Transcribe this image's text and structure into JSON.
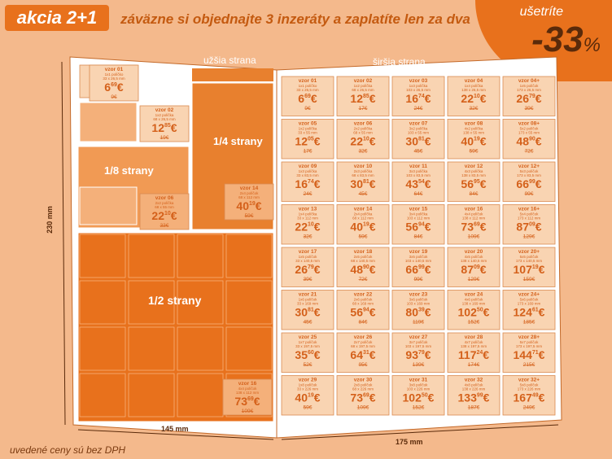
{
  "header": {
    "badge": "akcia 2+1",
    "headline": "záväzne si objednajte 3 inzeráty a zaplatíte len za dva",
    "save_label": "ušetríte",
    "save_value": "-33",
    "save_unit": "%"
  },
  "labels": {
    "narrow": "užšia strana",
    "wide": "širšia strana",
    "height": "230 mm",
    "narrow_width": "145 mm",
    "wide_width": "175 mm",
    "quarter": "1/4 strany",
    "eighth": "1/8 strany",
    "half": "1/2 strany"
  },
  "narrow_ads": [
    {
      "name": "vzor 01",
      "pol": "1x1 políčko",
      "size": "33 x 26,5 mm",
      "price": "6",
      "cents": "69",
      "old": "9"
    },
    {
      "name": "vzor 02",
      "pol": "1x2 políčka",
      "size": "68 x 26,5 mm",
      "price": "12",
      "cents": "85",
      "old": "19"
    },
    {
      "name": "vzor 06",
      "pol": "2x2 políčka",
      "size": "68 x 55 mm",
      "price": "22",
      "cents": "10",
      "old": "33"
    },
    {
      "name": "vzor 14",
      "pol": "2x4 políčok",
      "size": "68 x 112 mm",
      "price": "40",
      "cents": "19",
      "old": "59"
    },
    {
      "name": "vzor 16",
      "pol": "4x4 políčok",
      "size": "138 x 112 mm",
      "price": "73",
      "cents": "69",
      "old": "109"
    }
  ],
  "wide_ads": [
    {
      "name": "vzor 01",
      "pol": "1x1 políčko",
      "size": "33 x 26,5 mm",
      "price": "6",
      "cents": "69",
      "old": "9"
    },
    {
      "name": "vzor 02",
      "pol": "1x2 políčka",
      "size": "68 x 26,5 mm",
      "price": "12",
      "cents": "85",
      "old": "17"
    },
    {
      "name": "vzor 03",
      "pol": "1x3 políčka",
      "size": "103 x 26,5 mm",
      "price": "16",
      "cents": "74",
      "old": "24"
    },
    {
      "name": "vzor 04",
      "pol": "1x4 políčka",
      "size": "138 x 26,5 mm",
      "price": "22",
      "cents": "10",
      "old": "32"
    },
    {
      "name": "vzor 04+",
      "pol": "1x5 políčok",
      "size": "173 x 26,5 mm",
      "price": "26",
      "cents": "79",
      "old": "39"
    },
    {
      "name": "vzor 05",
      "pol": "1x2 políčka",
      "size": "33 x 55 mm",
      "price": "12",
      "cents": "05",
      "old": "17"
    },
    {
      "name": "vzor 06",
      "pol": "2x2 políčka",
      "size": "68 x 55 mm",
      "price": "22",
      "cents": "10",
      "old": "32"
    },
    {
      "name": "vzor 07",
      "pol": "3x2 políčka",
      "size": "103 x 55 mm",
      "price": "30",
      "cents": "81",
      "old": "45"
    },
    {
      "name": "vzor 08",
      "pol": "4x2 políčka",
      "size": "138 x 55 mm",
      "price": "40",
      "cents": "19",
      "old": "59"
    },
    {
      "name": "vzor 08+",
      "pol": "5x2 políčok",
      "size": "173 x 55 mm",
      "price": "48",
      "cents": "90",
      "old": "72"
    },
    {
      "name": "vzor 09",
      "pol": "1x3 políčka",
      "size": "33 x 83,5 mm",
      "price": "16",
      "cents": "74",
      "old": "24"
    },
    {
      "name": "vzor 10",
      "pol": "2x3 políčka",
      "size": "68 x 83,5 mm",
      "price": "30",
      "cents": "81",
      "old": "45"
    },
    {
      "name": "vzor 11",
      "pol": "3x3 políčka",
      "size": "103 x 83,5 mm",
      "price": "43",
      "cents": "54",
      "old": "64"
    },
    {
      "name": "vzor 12",
      "pol": "4x3 políčka",
      "size": "138 x 83,5 mm",
      "price": "56",
      "cents": "95",
      "old": "84"
    },
    {
      "name": "vzor 12+",
      "pol": "5x3 políčok",
      "size": "173 x 83,5 mm",
      "price": "66",
      "cents": "99",
      "old": "99"
    },
    {
      "name": "vzor 13",
      "pol": "1x4 políčka",
      "size": "33 x 112 mm",
      "price": "22",
      "cents": "10",
      "old": "32"
    },
    {
      "name": "vzor 14",
      "pol": "2x4 políčka",
      "size": "68 x 112 mm",
      "price": "40",
      "cents": "19",
      "old": "59"
    },
    {
      "name": "vzor 15",
      "pol": "3x4 políčka",
      "size": "103 x 112 mm",
      "price": "56",
      "cents": "94",
      "old": "84"
    },
    {
      "name": "vzor 16",
      "pol": "4x4 políčok",
      "size": "138 x 112 mm",
      "price": "73",
      "cents": "69",
      "old": "109"
    },
    {
      "name": "vzor 16+",
      "pol": "5x4 políčok",
      "size": "173 x 112 mm",
      "price": "87",
      "cents": "09",
      "old": "129"
    },
    {
      "name": "vzor 17",
      "pol": "1x5 políčok",
      "size": "33 x 140,5 mm",
      "price": "26",
      "cents": "79",
      "old": "39"
    },
    {
      "name": "vzor 18",
      "pol": "2x5 políčok",
      "size": "68 x 140,5 mm",
      "price": "48",
      "cents": "90",
      "old": "72"
    },
    {
      "name": "vzor 19",
      "pol": "3x5 políčok",
      "size": "103 x 140,5 mm",
      "price": "66",
      "cents": "99",
      "old": "99"
    },
    {
      "name": "vzor 20",
      "pol": "4x5 políčok",
      "size": "138 x 140,5 mm",
      "price": "87",
      "cents": "09",
      "old": "129"
    },
    {
      "name": "vzor 20+",
      "pol": "5x5 políčok",
      "size": "173 x 140,5 mm",
      "price": "107",
      "cents": "19",
      "old": "159"
    },
    {
      "name": "vzor 21",
      "pol": "1x6 políčok",
      "size": "33 x 169 mm",
      "price": "30",
      "cents": "81",
      "old": "45"
    },
    {
      "name": "vzor 22",
      "pol": "2x6 políčok",
      "size": "68 x 169 mm",
      "price": "56",
      "cents": "94",
      "old": "84"
    },
    {
      "name": "vzor 23",
      "pol": "3x6 políčok",
      "size": "103 x 169 mm",
      "price": "80",
      "cents": "39",
      "old": "119"
    },
    {
      "name": "vzor 24",
      "pol": "4x6 políčok",
      "size": "138 x 169 mm",
      "price": "102",
      "cents": "50",
      "old": "152"
    },
    {
      "name": "vzor 24+",
      "pol": "5x6 políčok",
      "size": "173 x 169 mm",
      "price": "124",
      "cents": "61",
      "old": "185"
    },
    {
      "name": "vzor 25",
      "pol": "1x7 políčok",
      "size": "33 x 197,5 mm",
      "price": "35",
      "cents": "60",
      "old": "52"
    },
    {
      "name": "vzor 26",
      "pol": "2x7 políčok",
      "size": "68 x 197,5 mm",
      "price": "64",
      "cents": "31",
      "old": "95"
    },
    {
      "name": "vzor 27",
      "pol": "3x7 políčok",
      "size": "103 x 197,5 mm",
      "price": "93",
      "cents": "79",
      "old": "139"
    },
    {
      "name": "vzor 28",
      "pol": "4x7 políčok",
      "size": "138 x 197,5 mm",
      "price": "117",
      "cents": "24",
      "old": "174"
    },
    {
      "name": "vzor 28+",
      "pol": "5x7 políčok",
      "size": "173 x 197,5 mm",
      "price": "144",
      "cents": "71",
      "old": "215"
    },
    {
      "name": "vzor 29",
      "pol": "1x8 políčok",
      "size": "33 x 226 mm",
      "price": "40",
      "cents": "19",
      "old": "59"
    },
    {
      "name": "vzor 30",
      "pol": "2x8 políčok",
      "size": "68 x 226 mm",
      "price": "73",
      "cents": "69",
      "old": "109"
    },
    {
      "name": "vzor 31",
      "pol": "3x8 políčok",
      "size": "103 x 226 mm",
      "price": "102",
      "cents": "50",
      "old": "152"
    },
    {
      "name": "vzor 32",
      "pol": "4x8 políčok",
      "size": "138 x 226 mm",
      "price": "133",
      "cents": "99",
      "old": "187"
    },
    {
      "name": "vzor 32+",
      "pol": "5x8 políčok",
      "size": "173 x 226 mm",
      "price": "167",
      "cents": "49",
      "old": "249"
    }
  ],
  "footer": "uvedené ceny sú bez DPH",
  "colors": {
    "accent": "#e8711c",
    "light": "#f7c9a3",
    "cell": "#f9d4b2",
    "text": "#d4601a",
    "dark": "#5a2a0a"
  }
}
